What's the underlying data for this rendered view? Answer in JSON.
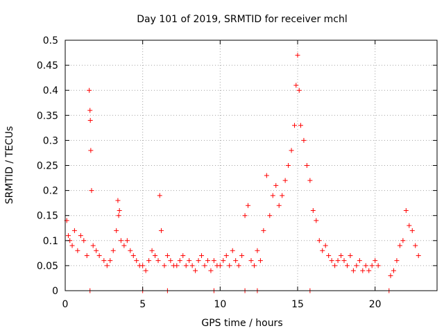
{
  "chart_data": {
    "type": "scatter",
    "title": "Day 101 of 2019, SRMTID for receiver mchl",
    "xlabel": "GPS time / hours",
    "ylabel": "SRMTID / TECUs",
    "xlim": [
      0,
      24
    ],
    "ylim": [
      0,
      0.5
    ],
    "xticks": [
      0,
      5,
      10,
      15,
      20
    ],
    "xtick_labels": [
      "0",
      "5",
      "10",
      "15",
      "20"
    ],
    "yticks": [
      0,
      0.05,
      0.1,
      0.15,
      0.2,
      0.25,
      0.3,
      0.35,
      0.4,
      0.45,
      0.5
    ],
    "ytick_labels": [
      "0",
      "0.05",
      "0.1",
      "0.15",
      "0.2",
      "0.25",
      "0.3",
      "0.35",
      "0.4",
      "0.45",
      "0.5"
    ],
    "grid": true,
    "marker": "plus",
    "color": "#ff0000",
    "x_range_observed": [
      0,
      22.9
    ],
    "peak": {
      "x": 15.0,
      "y": 0.47
    },
    "points": {
      "x": [
        0.1,
        0.2,
        0.3,
        0.45,
        0.6,
        0.8,
        1.0,
        1.2,
        1.4,
        1.55,
        1.6,
        1.62,
        1.65,
        1.7,
        1.8,
        2.0,
        2.2,
        2.5,
        2.7,
        2.9,
        3.1,
        3.3,
        3.4,
        3.45,
        3.5,
        3.6,
        3.8,
        4.0,
        4.2,
        4.4,
        4.6,
        4.8,
        5.0,
        5.2,
        5.4,
        5.6,
        5.8,
        6.0,
        6.1,
        6.2,
        6.4,
        6.6,
        6.8,
        7.0,
        7.2,
        7.4,
        7.6,
        7.8,
        8.0,
        8.2,
        8.4,
        8.6,
        8.8,
        9.0,
        9.2,
        9.4,
        9.6,
        9.8,
        10.0,
        10.2,
        10.4,
        10.6,
        10.8,
        11.0,
        11.2,
        11.4,
        11.6,
        11.8,
        12.0,
        12.2,
        12.4,
        12.6,
        12.8,
        13.0,
        13.2,
        13.4,
        13.6,
        13.8,
        14.0,
        14.2,
        14.4,
        14.6,
        14.8,
        14.9,
        15.0,
        15.1,
        15.2,
        15.4,
        15.6,
        15.8,
        16.0,
        16.2,
        16.4,
        16.6,
        16.8,
        17.0,
        17.2,
        17.4,
        17.6,
        17.8,
        18.0,
        18.2,
        18.4,
        18.6,
        18.8,
        19.0,
        19.2,
        19.4,
        19.6,
        19.8,
        20.0,
        20.2,
        21.0,
        21.2,
        21.4,
        21.6,
        21.8,
        22.0,
        22.2,
        22.4,
        22.6,
        22.8,
        1.6,
        5.0,
        6.6,
        9.6,
        11.6,
        12.4,
        15.8,
        20.9
      ],
      "y": [
        0.14,
        0.11,
        0.1,
        0.09,
        0.12,
        0.08,
        0.11,
        0.1,
        0.07,
        0.4,
        0.36,
        0.34,
        0.28,
        0.2,
        0.09,
        0.08,
        0.07,
        0.06,
        0.05,
        0.06,
        0.08,
        0.12,
        0.18,
        0.15,
        0.16,
        0.1,
        0.09,
        0.1,
        0.08,
        0.07,
        0.06,
        0.05,
        0.05,
        0.04,
        0.06,
        0.08,
        0.07,
        0.06,
        0.19,
        0.12,
        0.05,
        0.07,
        0.06,
        0.05,
        0.05,
        0.06,
        0.07,
        0.05,
        0.06,
        0.05,
        0.04,
        0.06,
        0.07,
        0.05,
        0.06,
        0.04,
        0.06,
        0.05,
        0.05,
        0.06,
        0.07,
        0.05,
        0.08,
        0.06,
        0.05,
        0.07,
        0.15,
        0.17,
        0.06,
        0.05,
        0.08,
        0.06,
        0.12,
        0.23,
        0.15,
        0.19,
        0.21,
        0.17,
        0.19,
        0.22,
        0.25,
        0.28,
        0.33,
        0.41,
        0.47,
        0.4,
        0.33,
        0.3,
        0.25,
        0.22,
        0.16,
        0.14,
        0.1,
        0.08,
        0.09,
        0.07,
        0.06,
        0.05,
        0.06,
        0.07,
        0.06,
        0.05,
        0.07,
        0.04,
        0.05,
        0.06,
        0.04,
        0.05,
        0.04,
        0.05,
        0.06,
        0.05,
        0.03,
        0.04,
        0.06,
        0.09,
        0.1,
        0.16,
        0.13,
        0.12,
        0.09,
        0.07,
        0,
        0,
        0,
        0,
        0,
        0,
        0,
        0
      ]
    }
  }
}
